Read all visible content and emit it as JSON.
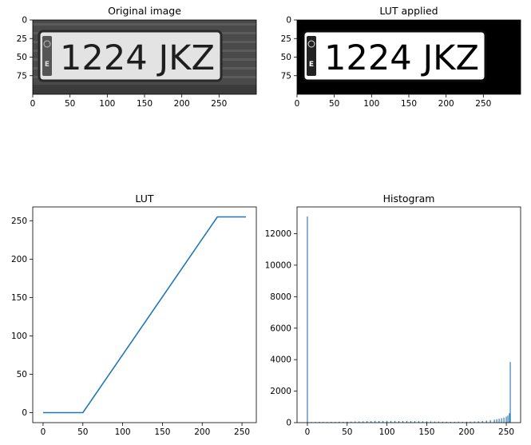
{
  "chart_data": [
    {
      "type": "image",
      "title": "Original image",
      "plate_text": "1224 JKZ",
      "plate_badge": "E",
      "xticks": [
        0,
        50,
        100,
        150,
        200,
        250
      ],
      "yticks": [
        0,
        25,
        50,
        75
      ],
      "xlim": [
        0,
        300
      ],
      "ylim": [
        100,
        0
      ],
      "colors": {
        "plate": "#e3e3e3",
        "text": "#1e1e1e",
        "background": "#4a4a4a",
        "border": "#2a2a2a"
      }
    },
    {
      "type": "image",
      "title": "LUT applied",
      "plate_text": "1224 JKZ",
      "plate_badge": "E",
      "xticks": [
        0,
        50,
        100,
        150,
        200,
        250
      ],
      "yticks": [
        0,
        25,
        50,
        75
      ],
      "xlim": [
        0,
        300
      ],
      "ylim": [
        100,
        0
      ],
      "colors": {
        "plate": "#ffffff",
        "text": "#000000",
        "background": "#000000",
        "border": "#0a0a0a"
      }
    },
    {
      "type": "line",
      "title": "LUT",
      "x": [
        0,
        50,
        219,
        255
      ],
      "y": [
        0,
        0,
        255,
        255
      ],
      "xticks": [
        0,
        50,
        100,
        150,
        200,
        250
      ],
      "yticks": [
        0,
        50,
        100,
        150,
        200,
        250
      ],
      "xlim": [
        -13,
        268
      ],
      "ylim": [
        -13,
        268
      ],
      "color": "#1f77b4"
    },
    {
      "type": "bar",
      "title": "Histogram",
      "x": [
        0,
        5,
        10,
        15,
        20,
        25,
        30,
        35,
        40,
        45,
        50,
        55,
        60,
        65,
        70,
        75,
        80,
        85,
        90,
        95,
        100,
        105,
        110,
        115,
        120,
        125,
        130,
        135,
        140,
        145,
        150,
        155,
        160,
        165,
        170,
        175,
        180,
        185,
        190,
        195,
        200,
        205,
        210,
        215,
        220,
        225,
        230,
        235,
        238,
        241,
        244,
        247,
        250,
        252,
        254,
        255
      ],
      "values": [
        13100,
        40,
        45,
        50,
        45,
        40,
        50,
        45,
        55,
        50,
        60,
        65,
        75,
        80,
        85,
        95,
        100,
        110,
        105,
        110,
        115,
        105,
        110,
        100,
        105,
        110,
        100,
        95,
        90,
        85,
        80,
        75,
        70,
        65,
        60,
        55,
        50,
        55,
        60,
        55,
        60,
        65,
        75,
        85,
        100,
        130,
        160,
        190,
        220,
        250,
        280,
        320,
        380,
        450,
        600,
        3850
      ],
      "xticks": [
        0,
        50,
        100,
        150,
        200,
        250
      ],
      "yticks": [
        0,
        2000,
        4000,
        6000,
        8000,
        10000,
        12000
      ],
      "xlim": [
        -13,
        268
      ],
      "ylim": [
        0,
        13700
      ],
      "color": "#1f77b4"
    }
  ]
}
